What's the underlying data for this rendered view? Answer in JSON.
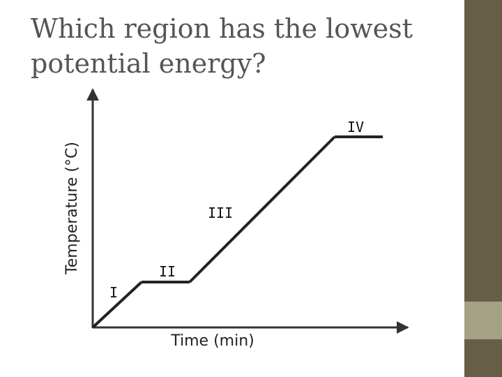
{
  "slide": {
    "title": "Which region has the lowest potential energy?",
    "colors": {
      "side_band": "#675e48",
      "side_band_accent": "#a5a184",
      "title_text": "#555555"
    }
  },
  "diagram": {
    "axes": {
      "x_label": "Time (min)",
      "y_label": "Temperature (°C)"
    },
    "regions": [
      {
        "id": "I",
        "label": "I",
        "segment": "rising"
      },
      {
        "id": "II",
        "label": "II",
        "segment": "flat"
      },
      {
        "id": "III",
        "label": "III",
        "segment": "rising"
      },
      {
        "id": "IV",
        "label": "IV",
        "segment": "flat"
      }
    ]
  }
}
